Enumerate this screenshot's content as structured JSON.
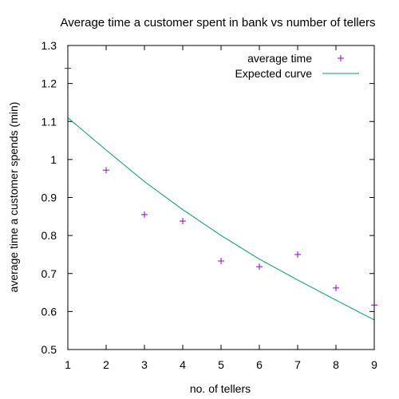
{
  "chart_data": {
    "type": "scatter",
    "title": "Average time a customer spent in bank vs number of tellers",
    "xlabel": "no. of tellers",
    "ylabel": "average time a customer spends (min)",
    "xlim": [
      1,
      9
    ],
    "ylim": [
      0.5,
      1.3
    ],
    "xticks": [
      "1",
      "2",
      "3",
      "4",
      "5",
      "6",
      "7",
      "8",
      "9"
    ],
    "yticks": [
      "0.5",
      "0.6",
      "0.7",
      "0.8",
      "0.9",
      "1",
      "1.1",
      "1.2",
      "1.3"
    ],
    "grid": false,
    "legend_position": "top-right",
    "series": [
      {
        "name": "average time",
        "kind": "points",
        "marker": "plus",
        "color": "#9400d3",
        "x": [
          1,
          2,
          3,
          4,
          5,
          6,
          7,
          8,
          9
        ],
        "y": [
          1.24,
          0.972,
          0.855,
          0.838,
          0.733,
          0.718,
          0.75,
          0.662,
          0.617
        ]
      },
      {
        "name": "Expected curve",
        "kind": "line",
        "color": "#009e73",
        "x": [
          1,
          2,
          3,
          4,
          5,
          6,
          7,
          8,
          9
        ],
        "y": [
          1.11,
          1.025,
          0.942,
          0.868,
          0.8,
          0.738,
          0.683,
          0.63,
          0.578
        ]
      }
    ]
  }
}
